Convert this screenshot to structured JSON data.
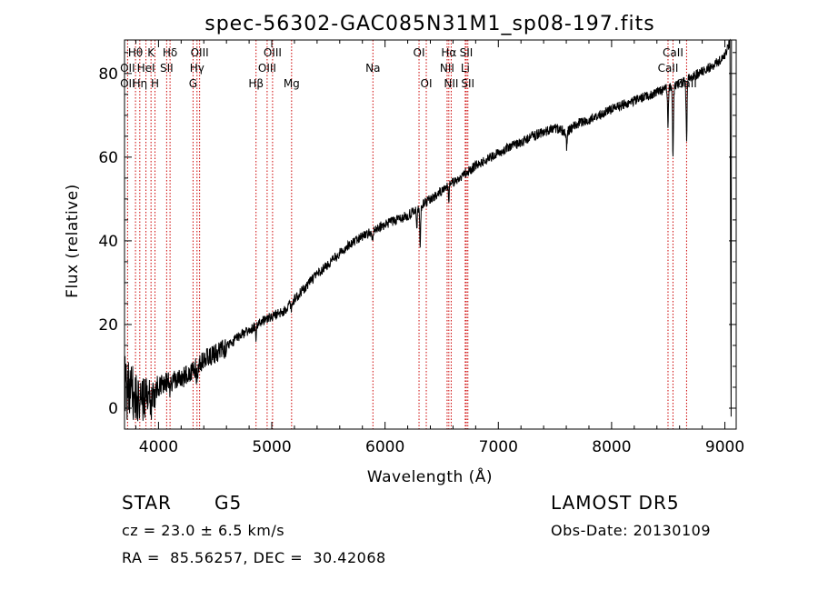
{
  "chart_data": {
    "type": "line",
    "title": "spec-56302-GAC085N31M1_sp08-197.fits",
    "xlabel": "Wavelength (Å)",
    "ylabel": "Flux (relative)",
    "xlim": [
      3700,
      9100
    ],
    "ylim": [
      -5,
      88
    ],
    "xticks": [
      4000,
      5000,
      6000,
      7000,
      8000,
      9000
    ],
    "yticks": [
      0,
      20,
      40,
      60,
      80
    ],
    "grid": false,
    "colors": {
      "spectrum": "#000000",
      "lines": "#cc0000"
    },
    "spectrum_knots": [
      [
        3700,
        5
      ],
      [
        3750,
        4
      ],
      [
        3800,
        3
      ],
      [
        3850,
        2
      ],
      [
        3900,
        3
      ],
      [
        3950,
        4
      ],
      [
        4000,
        5
      ],
      [
        4050,
        6
      ],
      [
        4100,
        6.5
      ],
      [
        4150,
        6.5
      ],
      [
        4200,
        7
      ],
      [
        4250,
        8
      ],
      [
        4300,
        9
      ],
      [
        4350,
        10
      ],
      [
        4400,
        11.5
      ],
      [
        4500,
        13
      ],
      [
        4600,
        14.5
      ],
      [
        4700,
        17
      ],
      [
        4800,
        18.5
      ],
      [
        4900,
        20.5
      ],
      [
        5000,
        22
      ],
      [
        5100,
        23
      ],
      [
        5200,
        26
      ],
      [
        5300,
        29
      ],
      [
        5400,
        32
      ],
      [
        5500,
        34.5
      ],
      [
        5600,
        37
      ],
      [
        5700,
        39.5
      ],
      [
        5800,
        41
      ],
      [
        5900,
        42.5
      ],
      [
        6000,
        44
      ],
      [
        6100,
        45
      ],
      [
        6200,
        46
      ],
      [
        6300,
        48
      ],
      [
        6400,
        50
      ],
      [
        6500,
        52
      ],
      [
        6600,
        54
      ],
      [
        6700,
        56
      ],
      [
        6800,
        58
      ],
      [
        6900,
        59.5
      ],
      [
        7000,
        61
      ],
      [
        7100,
        62.5
      ],
      [
        7200,
        63.5
      ],
      [
        7300,
        65
      ],
      [
        7400,
        66
      ],
      [
        7500,
        67
      ],
      [
        7600,
        66
      ],
      [
        7700,
        68
      ],
      [
        7800,
        69
      ],
      [
        7900,
        70
      ],
      [
        8000,
        71.5
      ],
      [
        8100,
        72.5
      ],
      [
        8200,
        73.5
      ],
      [
        8300,
        74.5
      ],
      [
        8400,
        75.5
      ],
      [
        8500,
        76.5
      ],
      [
        8600,
        77.5
      ],
      [
        8700,
        79
      ],
      [
        8800,
        80.5
      ],
      [
        8900,
        82
      ],
      [
        9000,
        84
      ],
      [
        9050,
        88
      ]
    ],
    "absorption_dips": [
      [
        3934,
        6
      ],
      [
        3969,
        5
      ],
      [
        4102,
        3
      ],
      [
        4340,
        3
      ],
      [
        4861,
        3
      ],
      [
        5175,
        2
      ],
      [
        5890,
        2
      ],
      [
        6280,
        4
      ],
      [
        6310,
        9
      ],
      [
        6563,
        3
      ],
      [
        7605,
        4
      ],
      [
        8498,
        9
      ],
      [
        8542,
        16
      ],
      [
        8662,
        14
      ]
    ],
    "lines": [
      {
        "label": "Hθ",
        "wave": 3797,
        "row": 0
      },
      {
        "label": "OII",
        "wave": 3727,
        "row": 1
      },
      {
        "label": "OII",
        "wave": 3727,
        "row": 2
      },
      {
        "label": "Hη",
        "wave": 3835,
        "row": 2
      },
      {
        "label": "HeI",
        "wave": 3889,
        "row": 1
      },
      {
        "label": "K",
        "wave": 3934,
        "row": 0
      },
      {
        "label": "H",
        "wave": 3969,
        "row": 2
      },
      {
        "label": "Hδ",
        "wave": 4102,
        "row": 0
      },
      {
        "label": "SII",
        "wave": 4072,
        "row": 1
      },
      {
        "label": "OIII",
        "wave": 4363,
        "row": 0
      },
      {
        "label": "Hγ",
        "wave": 4340,
        "row": 1
      },
      {
        "label": "G",
        "wave": 4305,
        "row": 2
      },
      {
        "label": "Hβ",
        "wave": 4861,
        "row": 2
      },
      {
        "label": "OIII",
        "wave": 5007,
        "row": 0
      },
      {
        "label": "OIII",
        "wave": 4959,
        "row": 1
      },
      {
        "label": "Mg",
        "wave": 5175,
        "row": 2
      },
      {
        "label": "Na",
        "wave": 5893,
        "row": 1
      },
      {
        "label": "OI",
        "wave": 6300,
        "row": 0
      },
      {
        "label": "OI",
        "wave": 6364,
        "row": 2
      },
      {
        "label": "Hα",
        "wave": 6563,
        "row": 0
      },
      {
        "label": "NII",
        "wave": 6548,
        "row": 1
      },
      {
        "label": "NII",
        "wave": 6584,
        "row": 2
      },
      {
        "label": "SII",
        "wave": 6717,
        "row": 0
      },
      {
        "label": "Li",
        "wave": 6708,
        "row": 1
      },
      {
        "label": "SII",
        "wave": 6731,
        "row": 2
      },
      {
        "label": "CaII",
        "wave": 8542,
        "row": 0
      },
      {
        "label": "CaII",
        "wave": 8498,
        "row": 1
      },
      {
        "label": "CaII",
        "wave": 8662,
        "row": 2
      }
    ]
  },
  "info": {
    "object_class": "STAR",
    "subclass": "G5",
    "survey": "LAMOST DR5",
    "cz": "cz = 23.0 ± 6.5 km/s",
    "obs_date": "Obs-Date: 20130109",
    "coords": "RA =  85.56257, DEC =  30.42068"
  }
}
